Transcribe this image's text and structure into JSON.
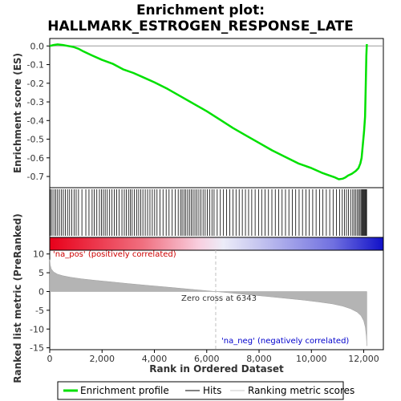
{
  "chart_data": [
    {
      "type": "line",
      "title": "Enrichment plot:",
      "subtitle": "HALLMARK_ESTROGEN_RESPONSE_LATE",
      "ylabel": "Enrichment score (ES)",
      "ylim": [
        -0.76,
        0.04
      ],
      "yticks": [
        "0.0",
        "-0.1",
        "-0.2",
        "-0.3",
        "-0.4",
        "-0.5",
        "-0.6",
        "-0.7"
      ],
      "yticks_values": [
        0.0,
        -0.1,
        -0.2,
        -0.3,
        -0.4,
        -0.5,
        -0.6,
        -0.7
      ],
      "series": [
        {
          "name": "Enrichment profile",
          "color": "#00e000",
          "x": [
            0,
            150,
            300,
            500,
            700,
            900,
            1100,
            1300,
            1600,
            2000,
            2400,
            2800,
            3200,
            3600,
            4000,
            4500,
            5000,
            5500,
            6000,
            6500,
            7000,
            7500,
            8000,
            8500,
            9000,
            9500,
            10000,
            10400,
            10700,
            10900,
            11050,
            11200,
            11300,
            11400,
            11550,
            11700,
            11800,
            11870,
            11920,
            11970,
            12010,
            12050,
            12080,
            12100,
            12120
          ],
          "y": [
            0.0,
            0.005,
            0.008,
            0.005,
            0.0,
            -0.005,
            -0.015,
            -0.03,
            -0.05,
            -0.075,
            -0.095,
            -0.125,
            -0.145,
            -0.17,
            -0.195,
            -0.23,
            -0.27,
            -0.31,
            -0.35,
            -0.395,
            -0.44,
            -0.48,
            -0.52,
            -0.56,
            -0.595,
            -0.63,
            -0.655,
            -0.68,
            -0.695,
            -0.705,
            -0.715,
            -0.712,
            -0.705,
            -0.695,
            -0.685,
            -0.67,
            -0.655,
            -0.63,
            -0.6,
            -0.52,
            -0.46,
            -0.38,
            -0.2,
            -0.05,
            0.01
          ]
        }
      ]
    },
    {
      "type": "scatter",
      "name": "hits",
      "legend_label": "Hits",
      "hit_positions": [
        30,
        90,
        160,
        230,
        300,
        370,
        450,
        520,
        600,
        680,
        760,
        840,
        930,
        1010,
        1100,
        1230,
        1380,
        1500,
        1620,
        1700,
        1800,
        1900,
        1980,
        2050,
        2120,
        2200,
        2290,
        2380,
        2470,
        2560,
        2650,
        2760,
        2850,
        2930,
        3010,
        3080,
        3150,
        3230,
        3320,
        3400,
        3480,
        3560,
        3650,
        3740,
        3830,
        3920,
        4010,
        4100,
        4210,
        4330,
        4450,
        4560,
        4680,
        4800,
        4910,
        5000,
        5060,
        5130,
        5200,
        5270,
        5340,
        5410,
        5480,
        5550,
        5620,
        5700,
        5780,
        5860,
        5940,
        6020,
        6110,
        6200,
        6280,
        6400,
        6520,
        6640,
        6760,
        6880,
        7000,
        7120,
        7240,
        7360,
        7480,
        7600,
        7720,
        7850,
        7980,
        8100,
        8230,
        8360,
        8490,
        8620,
        8750,
        8880,
        9010,
        9140,
        9270,
        9400,
        9530,
        9660,
        9790,
        9920,
        10050,
        10180,
        10310,
        10440,
        10570,
        10700,
        10830,
        10960,
        11080,
        11180,
        11260,
        11340,
        11420,
        11500,
        11580,
        11640,
        11700,
        11760,
        11810,
        11860,
        11900,
        11940,
        11970,
        12000,
        12030,
        12060,
        12090,
        12110
      ]
    },
    {
      "type": "area",
      "name": "ranked-list-metric",
      "legend_label": "Ranking metric scores",
      "xlabel": "Rank in Ordered Dataset",
      "ylabel": "Ranked list metric (PreRanked)",
      "ylim": [
        -15.5,
        11
      ],
      "yticks": [
        "10",
        "5",
        "0",
        "-5",
        "-10",
        "-15"
      ],
      "yticks_values": [
        10,
        5,
        0,
        -5,
        -10,
        -15
      ],
      "xlim": [
        0,
        12750
      ],
      "xticks": [
        "0",
        "2,000",
        "4,000",
        "6,000",
        "8,000",
        "10,000",
        "12,000"
      ],
      "xticks_values": [
        0,
        2000,
        4000,
        6000,
        8000,
        10000,
        12000
      ],
      "x": [
        0,
        20,
        60,
        150,
        300,
        500,
        800,
        1200,
        1700,
        2300,
        3000,
        3800,
        4600,
        5400,
        6000,
        6343,
        6800,
        7500,
        8300,
        9000,
        9700,
        10300,
        10800,
        11200,
        11500,
        11750,
        11900,
        12000,
        12060,
        12100,
        12120
      ],
      "y": [
        8.5,
        7.0,
        6.0,
        5.2,
        4.6,
        4.2,
        3.8,
        3.4,
        3.0,
        2.6,
        2.1,
        1.6,
        1.1,
        0.6,
        0.2,
        0.0,
        -0.3,
        -0.8,
        -1.3,
        -1.8,
        -2.3,
        -2.8,
        -3.3,
        -3.9,
        -4.6,
        -5.5,
        -6.5,
        -7.8,
        -9.5,
        -12.0,
        -14.5
      ],
      "zero_cross_label": "Zero cross at 6343",
      "zero_cross": 6343,
      "pos_label": "'na_pos' (positively correlated)",
      "neg_label": "'na_neg' (negatively correlated)"
    }
  ],
  "legend": {
    "items": [
      {
        "label": "Enrichment profile",
        "color": "#00e000"
      },
      {
        "label": "Hits",
        "color": "#000000"
      },
      {
        "label": "Ranking metric scores",
        "color": "#c8c8c8"
      }
    ]
  },
  "colors": {
    "profile": "#00e000",
    "pos_label": "#cc0000",
    "neg_label": "#0000cc",
    "metric_fill": "#b4b4b4",
    "zero_line": "#c0c0c0"
  }
}
